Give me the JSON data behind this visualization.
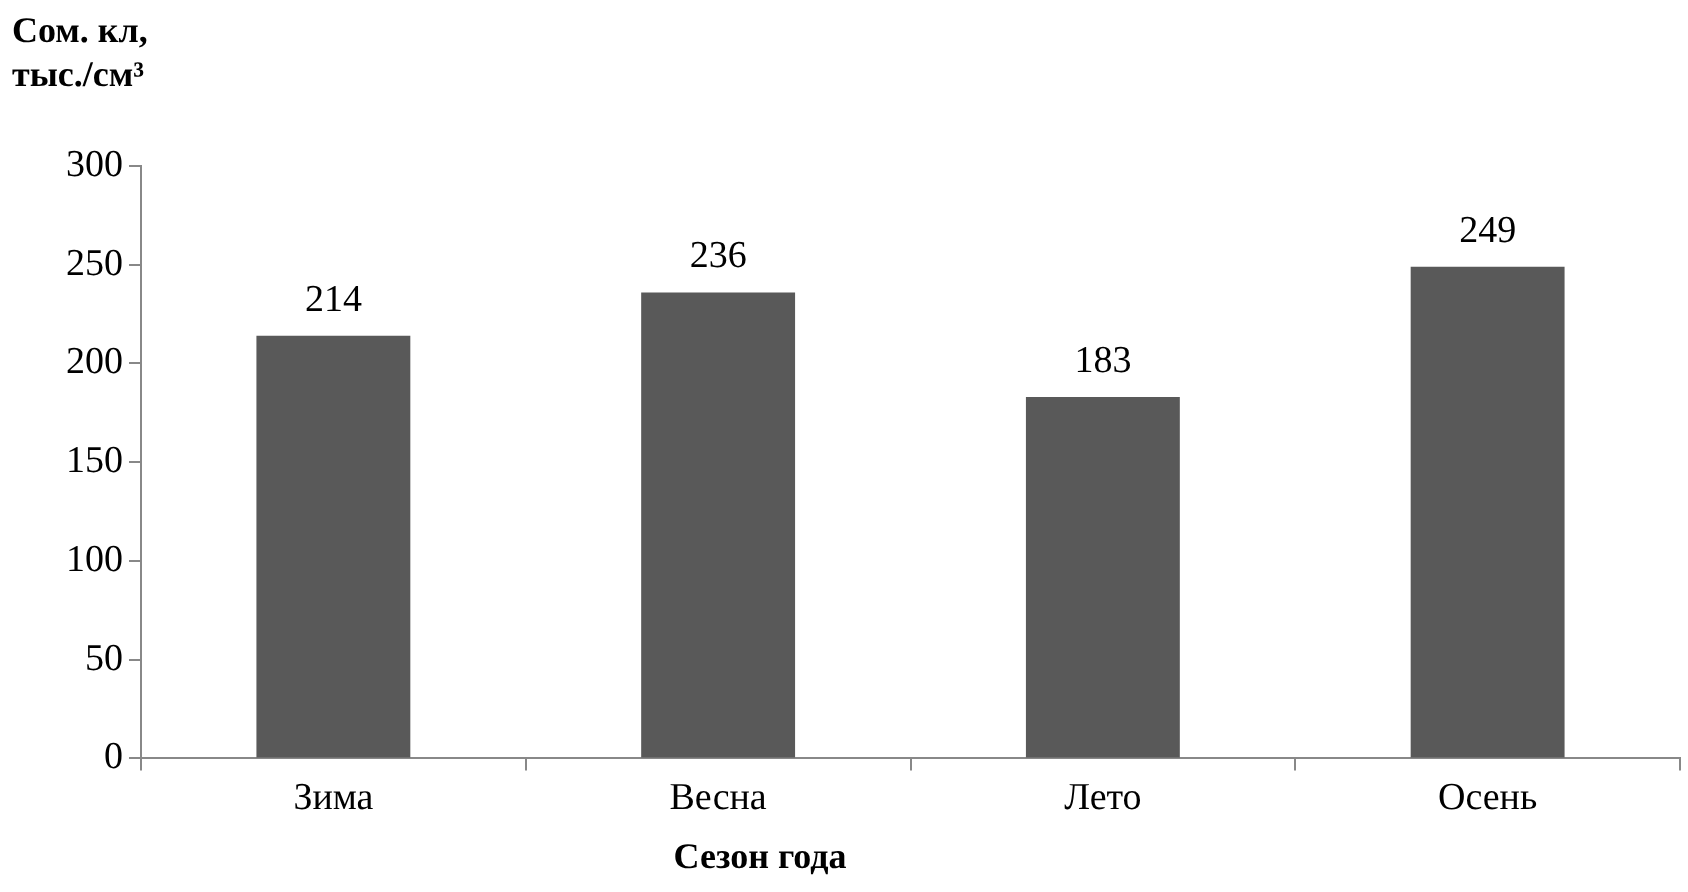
{
  "chart_data": {
    "type": "bar",
    "ylabel": "Сом. кл, тыс./см³",
    "xlabel": "Сезон года",
    "categories": [
      "Зима",
      "Весна",
      "Лето",
      "Осень"
    ],
    "values": [
      214,
      236,
      183,
      249
    ],
    "color": "#595959",
    "ylim": [
      0,
      300
    ],
    "yticks": [
      0,
      50,
      100,
      150,
      200,
      250,
      300
    ],
    "grid": false,
    "legend": false,
    "data_labels": true
  }
}
